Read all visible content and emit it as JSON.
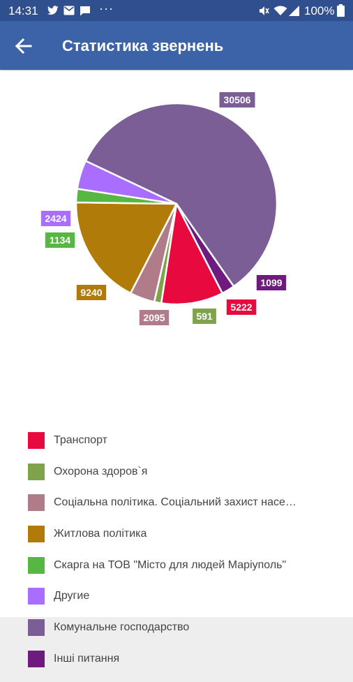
{
  "status_bar": {
    "time": "14:31",
    "dots": "···",
    "battery": "100%",
    "icons": [
      "twitter-icon",
      "mail-icon",
      "message-icon",
      "mute-icon",
      "wifi-icon",
      "signal-icon",
      "battery-icon"
    ]
  },
  "app_bar": {
    "title": "Статистика звернень",
    "back_icon": "arrow-left-icon"
  },
  "chart_data": {
    "type": "pie",
    "categories": [
      "Транспорт",
      "Охорона здоров`я",
      "Соціальна політика. Соціальний захист насе…",
      "Житлова політика",
      "Скарга на ТОВ \"Місто для людей Маріуполь\"",
      "Другие",
      "Комунальне господарство",
      "Інші питання"
    ],
    "values": [
      5222,
      591,
      2095,
      9240,
      1134,
      2424,
      30506,
      1099
    ],
    "value_labels": [
      "5222",
      "591",
      "2095",
      "9240",
      "1134",
      "2424",
      "30506",
      "1099"
    ],
    "colors": [
      "#e8093f",
      "#7ea34b",
      "#b07c8a",
      "#b07b08",
      "#56b843",
      "#a96dff",
      "#7c5e97",
      "#6e1a7e"
    ],
    "legend_placement": "bottom"
  }
}
